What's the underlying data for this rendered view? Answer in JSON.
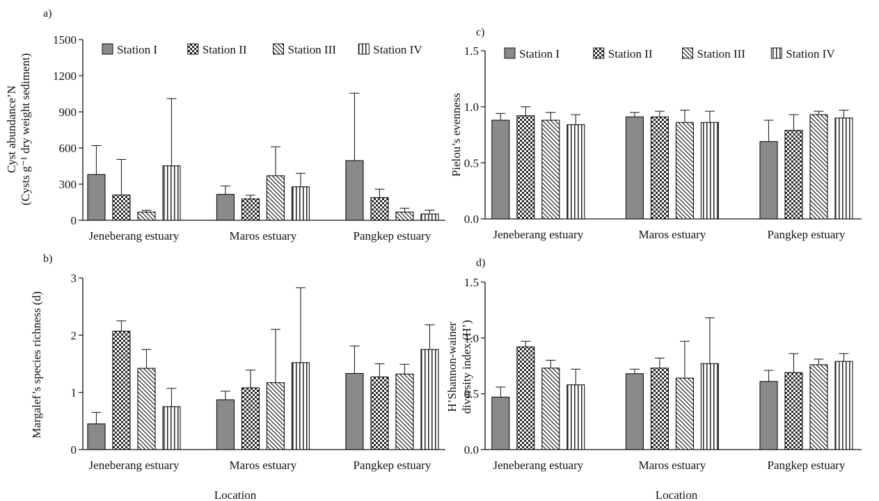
{
  "figure": {
    "xlabel_left": "Location",
    "xlabel_right": "Location"
  },
  "legend_labels": [
    "Station I",
    "Station II",
    "Station III",
    "Station IV"
  ],
  "chart_data": [
    {
      "panel": "a)",
      "type": "bar",
      "ylabel": [
        "Cyst abundance’N",
        "(Cysts g⁻¹ dry weight sediment)"
      ],
      "ylim": [
        0,
        1500
      ],
      "yticks": [
        "0",
        "300",
        "600",
        "900",
        "1200",
        "1500"
      ],
      "categories": [
        "Jeneberang estuary",
        "Maros estuary",
        "Pangkep estuary"
      ],
      "legend": "top",
      "series": [
        {
          "name": "Station I",
          "values": [
            380,
            215,
            495
          ],
          "errors": [
            240,
            70,
            560
          ]
        },
        {
          "name": "Station II",
          "values": [
            210,
            178,
            188
          ],
          "errors": [
            295,
            30,
            70
          ]
        },
        {
          "name": "Station III",
          "values": [
            68,
            370,
            68
          ],
          "errors": [
            15,
            240,
            32
          ]
        },
        {
          "name": "Station IV",
          "values": [
            452,
            278,
            52
          ],
          "errors": [
            558,
            112,
            32
          ]
        }
      ]
    },
    {
      "panel": "b)",
      "type": "bar",
      "ylabel": [
        "Margalef’s species richness (d)"
      ],
      "ylim": [
        0,
        3
      ],
      "yticks": [
        "0",
        "1",
        "2",
        "3"
      ],
      "categories": [
        "Jeneberang estuary",
        "Maros estuary",
        "Pangkep estuary"
      ],
      "legend": "none",
      "series": [
        {
          "name": "Station I",
          "values": [
            0.45,
            0.87,
            1.33
          ],
          "errors": [
            0.2,
            0.15,
            0.48
          ]
        },
        {
          "name": "Station II",
          "values": [
            2.07,
            1.08,
            1.27
          ],
          "errors": [
            0.18,
            0.31,
            0.23
          ]
        },
        {
          "name": "Station III",
          "values": [
            1.42,
            1.17,
            1.32
          ],
          "errors": [
            0.33,
            0.93,
            0.17
          ]
        },
        {
          "name": "Station IV",
          "values": [
            0.75,
            1.52,
            1.75
          ],
          "errors": [
            0.32,
            1.31,
            0.43
          ]
        }
      ]
    },
    {
      "panel": "c)",
      "type": "bar",
      "ylabel": [
        "Pielou’s evenness"
      ],
      "ylim": [
        0,
        1.5
      ],
      "yticks": [
        "0.0",
        "0.5",
        "1.0",
        "1.5"
      ],
      "categories": [
        "Jeneberang estuary",
        "Maros estuary",
        "Pangkep estuary"
      ],
      "legend": "top",
      "series": [
        {
          "name": "Station I",
          "values": [
            0.88,
            0.91,
            0.69
          ],
          "errors": [
            0.06,
            0.04,
            0.19
          ]
        },
        {
          "name": "Station II",
          "values": [
            0.92,
            0.91,
            0.79
          ],
          "errors": [
            0.08,
            0.05,
            0.14
          ]
        },
        {
          "name": "Station III",
          "values": [
            0.88,
            0.86,
            0.93
          ],
          "errors": [
            0.07,
            0.11,
            0.03
          ]
        },
        {
          "name": "Station IV",
          "values": [
            0.84,
            0.86,
            0.9
          ],
          "errors": [
            0.09,
            0.1,
            0.07
          ]
        }
      ]
    },
    {
      "panel": "d)",
      "type": "bar",
      "ylabel": [
        "H’Shannon-wainer",
        "diversity index (H’)"
      ],
      "ylim": [
        0,
        1.5
      ],
      "yticks": [
        "0.0",
        "0.5",
        "1.0",
        "1.5"
      ],
      "categories": [
        "Jeneberang estuary",
        "Maros estuary",
        "Pangkep estuary"
      ],
      "legend": "none",
      "series": [
        {
          "name": "Station I",
          "values": [
            0.47,
            0.68,
            0.61
          ],
          "errors": [
            0.09,
            0.04,
            0.1
          ]
        },
        {
          "name": "Station II",
          "values": [
            0.92,
            0.73,
            0.69
          ],
          "errors": [
            0.05,
            0.09,
            0.17
          ]
        },
        {
          "name": "Station III",
          "values": [
            0.73,
            0.64,
            0.76
          ],
          "errors": [
            0.07,
            0.33,
            0.05
          ]
        },
        {
          "name": "Station IV",
          "values": [
            0.58,
            0.77,
            0.79
          ],
          "errors": [
            0.14,
            0.41,
            0.07
          ]
        }
      ]
    }
  ]
}
